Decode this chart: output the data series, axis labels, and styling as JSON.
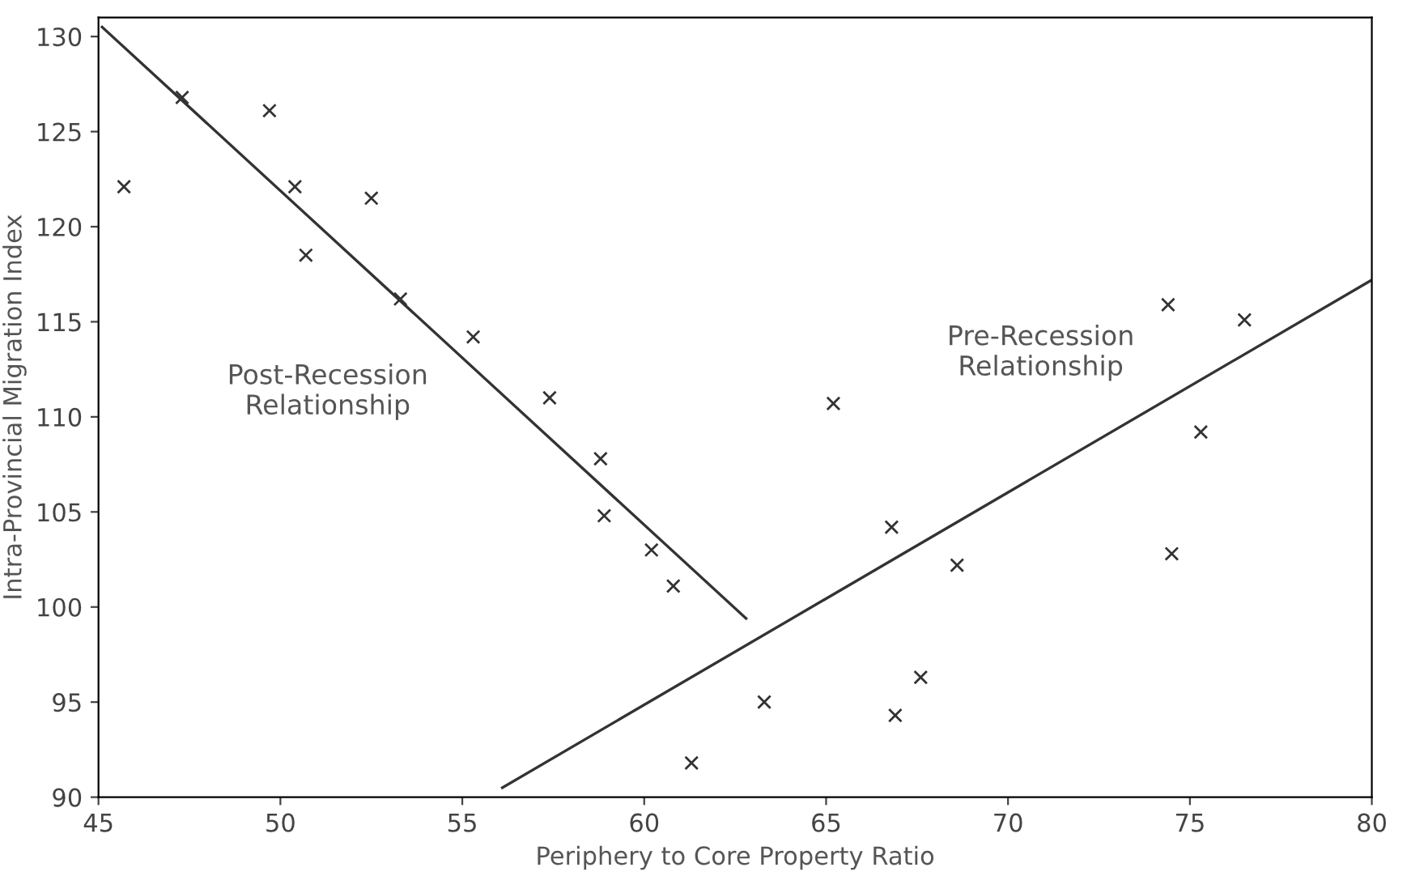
{
  "chart_data": {
    "type": "scatter",
    "xlabel": "Periphery to Core Property Ratio",
    "ylabel": "Intra-Provincial Migration Index",
    "xlim": [
      45,
      80
    ],
    "ylim": [
      90,
      131
    ],
    "xticks": [
      45,
      50,
      55,
      60,
      65,
      70,
      75,
      80
    ],
    "yticks": [
      90,
      95,
      100,
      105,
      110,
      115,
      120,
      125,
      130
    ],
    "grid": false,
    "marker": "cross",
    "series": [
      {
        "color": "#333333",
        "x": [
          47.3,
          49.7,
          45.7,
          50.4,
          52.5,
          50.7,
          53.3,
          55.3,
          57.4,
          58.8,
          58.9,
          60.2,
          60.8,
          63.3,
          67.6,
          66.9,
          61.3,
          65.2,
          66.8,
          68.6,
          74.5,
          75.3,
          74.4,
          76.5
        ],
        "values": [
          126.8,
          126.1,
          122.1,
          122.1,
          121.5,
          118.5,
          116.2,
          114.2,
          111.0,
          107.8,
          104.8,
          103.0,
          101.1,
          95.0,
          96.3,
          94.3,
          91.8,
          110.7,
          104.2,
          102.2,
          102.8,
          109.2,
          115.9,
          115.1
        ]
      },
      {
        "type": "line",
        "marker": "none",
        "color": "#333333",
        "x": [
          45.1,
          62.8
        ],
        "values": [
          130.5,
          99.4
        ]
      },
      {
        "type": "line",
        "marker": "none",
        "color": "#333333",
        "x": [
          56.1,
          80
        ],
        "values": [
          90.5,
          117.2
        ]
      }
    ],
    "annotations": [
      "Post-Recession\nRelationship",
      "Pre-Recession\nRelationship"
    ]
  }
}
